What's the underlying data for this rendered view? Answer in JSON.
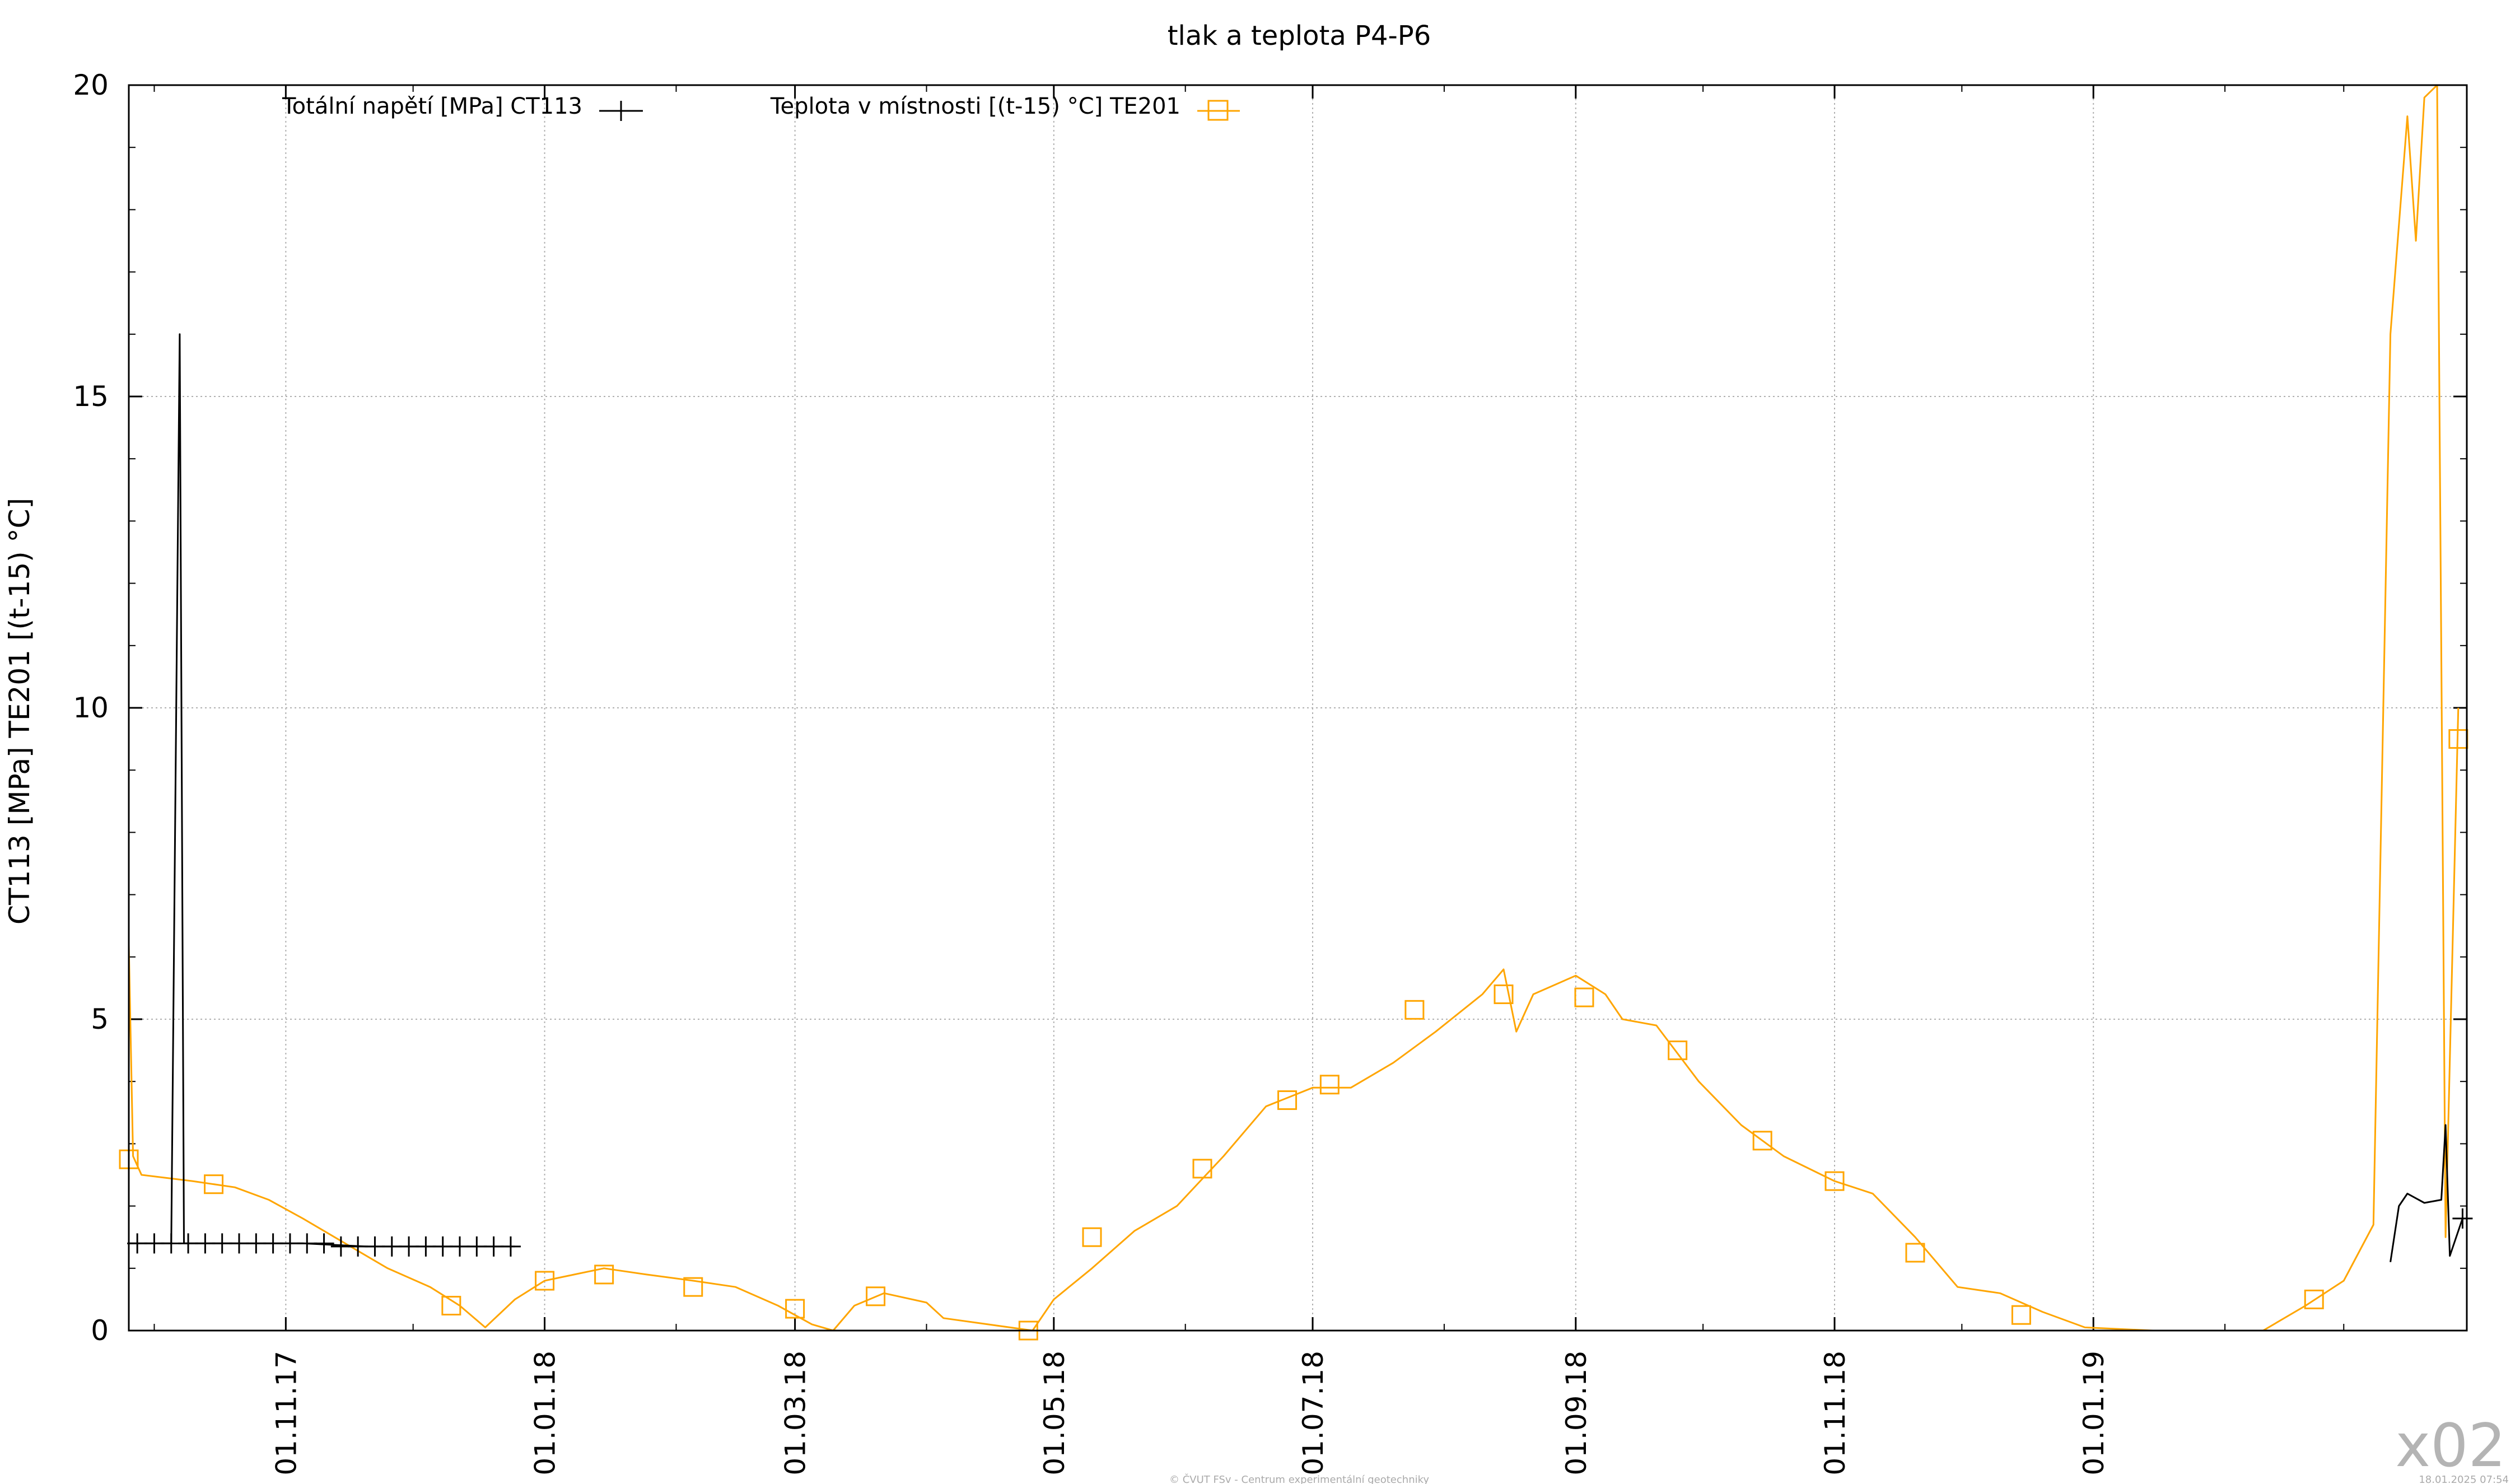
{
  "chart_data": {
    "type": "line",
    "title": "tlak a teplota P4-P6",
    "ylabel": "CT113 [MPa] TE201 [(t-15) °C]",
    "xlabel": "",
    "ylim": [
      0,
      20
    ],
    "yticks": [
      0,
      5,
      10,
      15,
      20
    ],
    "xlim": [
      "2017-09-25",
      "2019-03-30"
    ],
    "xticks": [
      {
        "date": "2017-11-01",
        "label": "01.11.17"
      },
      {
        "date": "2018-01-01",
        "label": "01.01.18"
      },
      {
        "date": "2018-03-01",
        "label": "01.03.18"
      },
      {
        "date": "2018-05-01",
        "label": "01.05.18"
      },
      {
        "date": "2018-07-01",
        "label": "01.07.18"
      },
      {
        "date": "2018-09-01",
        "label": "01.09.18"
      },
      {
        "date": "2018-11-01",
        "label": "01.11.18"
      },
      {
        "date": "2019-01-01",
        "label": "01.01.19"
      }
    ],
    "grid": true,
    "legend_position": "top",
    "series": [
      {
        "name": "Totální napětí [MPa] CT113",
        "color": "#000000",
        "marker": "plus",
        "points": [
          [
            "2017-09-25",
            1.4
          ],
          [
            "2017-10-05",
            1.4
          ],
          [
            "2017-10-07",
            16.0
          ],
          [
            "2017-10-08",
            1.4
          ],
          [
            "2017-10-20",
            1.4
          ],
          [
            "2017-11-05",
            1.4
          ],
          [
            "2017-11-20",
            1.35
          ],
          [
            "2017-12-05",
            1.35
          ],
          [
            "2017-12-20",
            1.35
          ],
          [
            "2017-12-25",
            1.35
          ],
          [
            "2019-03-12",
            1.1
          ],
          [
            "2019-03-14",
            2.0
          ],
          [
            "2019-03-16",
            2.2
          ],
          [
            "2019-03-20",
            2.05
          ],
          [
            "2019-03-24",
            2.1
          ],
          [
            "2019-03-25",
            3.3
          ],
          [
            "2019-03-26",
            1.2
          ],
          [
            "2019-03-27",
            1.4
          ],
          [
            "2019-03-29",
            1.8
          ]
        ],
        "marker_points": [
          [
            "2017-09-27",
            1.4
          ],
          [
            "2017-10-01",
            1.4
          ],
          [
            "2017-10-05",
            1.4
          ],
          [
            "2017-10-09",
            1.4
          ],
          [
            "2017-10-13",
            1.4
          ],
          [
            "2017-10-17",
            1.4
          ],
          [
            "2017-10-21",
            1.4
          ],
          [
            "2017-10-25",
            1.4
          ],
          [
            "2017-10-29",
            1.4
          ],
          [
            "2017-11-02",
            1.4
          ],
          [
            "2017-11-06",
            1.4
          ],
          [
            "2017-11-10",
            1.4
          ],
          [
            "2017-11-14",
            1.35
          ],
          [
            "2017-11-18",
            1.35
          ],
          [
            "2017-11-22",
            1.35
          ],
          [
            "2017-11-26",
            1.35
          ],
          [
            "2017-11-30",
            1.35
          ],
          [
            "2017-12-04",
            1.35
          ],
          [
            "2017-12-08",
            1.35
          ],
          [
            "2017-12-12",
            1.35
          ],
          [
            "2017-12-16",
            1.35
          ],
          [
            "2017-12-20",
            1.35
          ],
          [
            "2017-12-24",
            1.35
          ],
          [
            "2019-03-29",
            1.8
          ]
        ]
      },
      {
        "name": "Teplota v místnosti [(t-15) °C] TE201",
        "color": "#ffa500",
        "marker": "square",
        "points": [
          [
            "2017-09-25",
            6.2
          ],
          [
            "2017-09-26",
            2.8
          ],
          [
            "2017-09-28",
            2.5
          ],
          [
            "2017-10-10",
            2.4
          ],
          [
            "2017-10-20",
            2.3
          ],
          [
            "2017-10-28",
            2.1
          ],
          [
            "2017-11-05",
            1.8
          ],
          [
            "2017-11-15",
            1.4
          ],
          [
            "2017-11-25",
            1.0
          ],
          [
            "2017-12-05",
            0.7
          ],
          [
            "2017-12-12",
            0.4
          ],
          [
            "2017-12-18",
            0.05
          ],
          [
            "2017-12-25",
            0.5
          ],
          [
            "2018-01-01",
            0.8
          ],
          [
            "2018-01-08",
            0.9
          ],
          [
            "2018-01-15",
            1.0
          ],
          [
            "2018-01-25",
            0.9
          ],
          [
            "2018-02-05",
            0.8
          ],
          [
            "2018-02-15",
            0.7
          ],
          [
            "2018-02-25",
            0.4
          ],
          [
            "2018-03-05",
            0.1
          ],
          [
            "2018-03-10",
            0.0
          ],
          [
            "2018-03-15",
            0.4
          ],
          [
            "2018-03-22",
            0.6
          ],
          [
            "2018-04-01",
            0.45
          ],
          [
            "2018-04-05",
            0.2
          ],
          [
            "2018-04-26",
            0.0
          ],
          [
            "2018-05-01",
            0.5
          ],
          [
            "2018-05-10",
            1.0
          ],
          [
            "2018-05-20",
            1.6
          ],
          [
            "2018-05-30",
            2.0
          ],
          [
            "2018-06-10",
            2.8
          ],
          [
            "2018-06-20",
            3.6
          ],
          [
            "2018-07-01",
            3.9
          ],
          [
            "2018-07-10",
            3.9
          ],
          [
            "2018-07-20",
            4.3
          ],
          [
            "2018-07-30",
            4.8
          ],
          [
            "2018-08-10",
            5.4
          ],
          [
            "2018-08-15",
            5.8
          ],
          [
            "2018-08-18",
            4.8
          ],
          [
            "2018-08-22",
            5.4
          ],
          [
            "2018-09-01",
            5.7
          ],
          [
            "2018-09-08",
            5.4
          ],
          [
            "2018-09-12",
            5.0
          ],
          [
            "2018-09-20",
            4.9
          ],
          [
            "2018-09-30",
            4.0
          ],
          [
            "2018-10-10",
            3.3
          ],
          [
            "2018-10-20",
            2.8
          ],
          [
            "2018-11-01",
            2.4
          ],
          [
            "2018-11-10",
            2.2
          ],
          [
            "2018-11-20",
            1.5
          ],
          [
            "2018-11-30",
            0.7
          ],
          [
            "2018-12-10",
            0.6
          ],
          [
            "2018-12-20",
            0.3
          ],
          [
            "2018-12-30",
            0.05
          ],
          [
            "2019-01-15",
            0.0
          ],
          [
            "2019-02-10",
            0.0
          ],
          [
            "2019-02-20",
            0.4
          ],
          [
            "2019-03-01",
            0.8
          ],
          [
            "2019-03-08",
            1.7
          ],
          [
            "2019-03-12",
            16.0
          ],
          [
            "2019-03-16",
            19.5
          ],
          [
            "2019-03-18",
            17.5
          ],
          [
            "2019-03-20",
            19.8
          ],
          [
            "2019-03-23",
            20.0
          ],
          [
            "2019-03-25",
            1.5
          ],
          [
            "2019-03-28",
            10.0
          ]
        ],
        "marker_points": [
          [
            "2017-09-25",
            2.75
          ],
          [
            "2017-10-15",
            2.35
          ],
          [
            "2017-12-10",
            0.4
          ],
          [
            "2018-01-01",
            0.8
          ],
          [
            "2018-01-15",
            0.9
          ],
          [
            "2018-02-05",
            0.7
          ],
          [
            "2018-03-01",
            0.35
          ],
          [
            "2018-03-20",
            0.55
          ],
          [
            "2018-04-25",
            0.0
          ],
          [
            "2018-05-10",
            1.5
          ],
          [
            "2018-06-05",
            2.6
          ],
          [
            "2018-06-25",
            3.7
          ],
          [
            "2018-07-05",
            3.95
          ],
          [
            "2018-07-25",
            5.15
          ],
          [
            "2018-08-15",
            5.4
          ],
          [
            "2018-09-03",
            5.35
          ],
          [
            "2018-09-25",
            4.5
          ],
          [
            "2018-10-15",
            3.05
          ],
          [
            "2018-11-01",
            2.4
          ],
          [
            "2018-11-20",
            1.25
          ],
          [
            "2018-12-15",
            0.25
          ],
          [
            "2019-02-22",
            0.5
          ],
          [
            "2019-03-28",
            9.5
          ]
        ]
      }
    ]
  },
  "footer": {
    "copyright": "© ČVUT FSv - Centrum experimentální geotechniky",
    "timestamp": "18.01.2025 07:54"
  },
  "watermark": "x02"
}
